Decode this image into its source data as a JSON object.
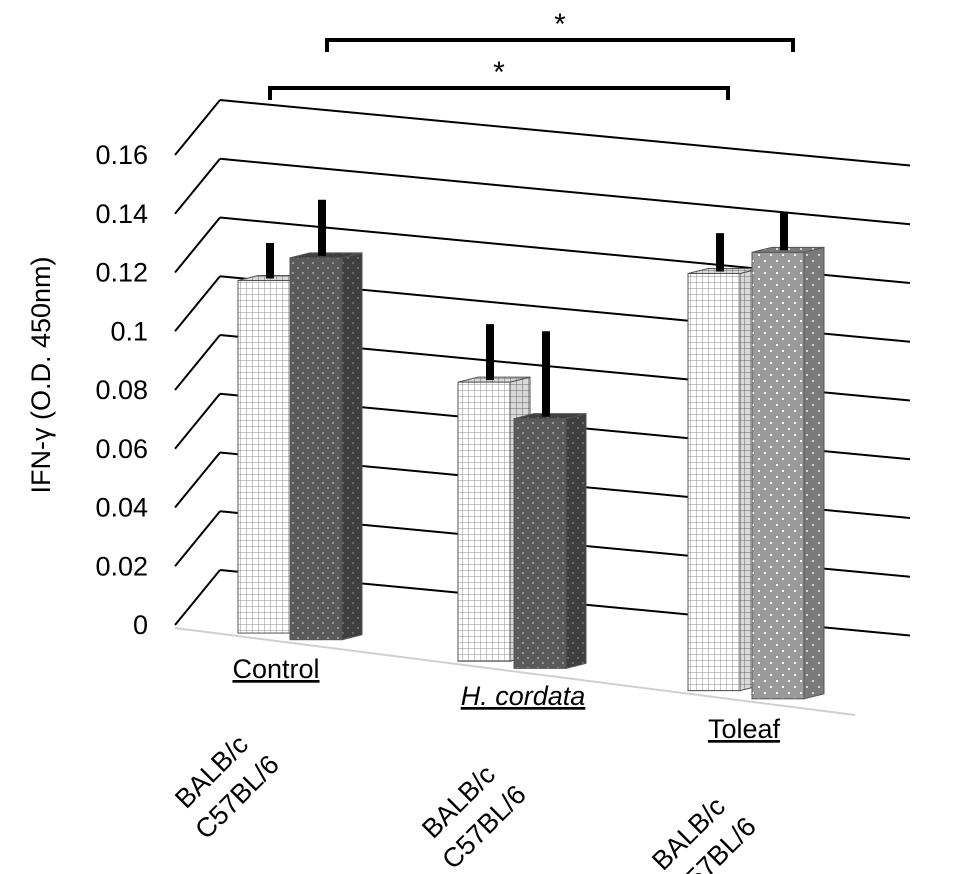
{
  "chart_data": {
    "type": "bar",
    "ylabel": "IFN-γ (O.D. 450nm)",
    "ylim": [
      0,
      0.16
    ],
    "yticks": [
      "0.16",
      "0.14",
      "0.12",
      "0.1",
      "0.08",
      "0.06",
      "0.04",
      "0.02",
      "0"
    ],
    "groups": [
      {
        "label": "Control",
        "italic": false
      },
      {
        "label": "H. cordata",
        "italic": true
      },
      {
        "label": "Toleaf",
        "italic": false
      }
    ],
    "strain_labels": [
      "BALB/c",
      "C57BL/6"
    ],
    "series": [
      {
        "name": "BALB/c",
        "values": [
          0.12,
          0.095,
          0.142
        ],
        "errors": [
          0.008,
          0.015,
          0.009
        ]
      },
      {
        "name": "C57BL/6",
        "values": [
          0.13,
          0.085,
          0.152
        ],
        "errors": [
          0.015,
          0.025,
          0.009
        ]
      }
    ],
    "annotations": [
      {
        "text": "*",
        "from": "Control",
        "to": "Toleaf BALB/c"
      },
      {
        "text": "*",
        "from": "Control C57BL/6",
        "to": "Toleaf C57BL/6"
      }
    ],
    "grid": true,
    "colors": {
      "balb_face": "#ffffff",
      "balb_pattern": "#8c8c8c",
      "c57_face": "#5a5a5a",
      "toleaf_c57_face": "#9a9a9a"
    }
  }
}
